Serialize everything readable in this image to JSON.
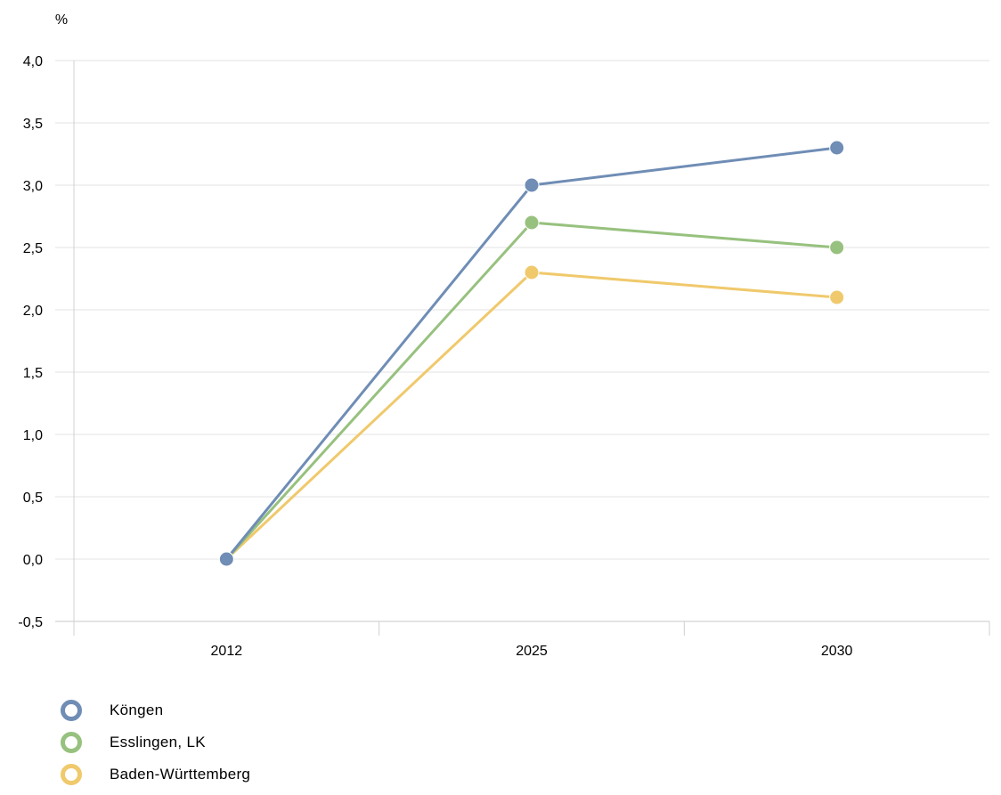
{
  "chart_data": {
    "type": "line",
    "title": "",
    "xlabel": "",
    "ylabel": "%",
    "categories": [
      "2012",
      "2025",
      "2030"
    ],
    "ylim": [
      -0.5,
      4.0
    ],
    "yticks": [
      "-0,5",
      "0,0",
      "0,5",
      "1,0",
      "1,5",
      "2,0",
      "2,5",
      "3,0",
      "3,5",
      "4,0"
    ],
    "ytick_values": [
      -0.5,
      0.0,
      0.5,
      1.0,
      1.5,
      2.0,
      2.5,
      3.0,
      3.5,
      4.0
    ],
    "grid": "horizontal",
    "legend_position": "bottom-left",
    "series": [
      {
        "name": "Köngen",
        "values": [
          0.0,
          3.0,
          3.3
        ],
        "color": "#6f8db5"
      },
      {
        "name": "Esslingen, LK",
        "values": [
          0.0,
          2.7,
          2.5
        ],
        "color": "#97c17e"
      },
      {
        "name": "Baden-Württemberg",
        "values": [
          0.0,
          2.3,
          2.1
        ],
        "color": "#f0c96c"
      }
    ]
  }
}
